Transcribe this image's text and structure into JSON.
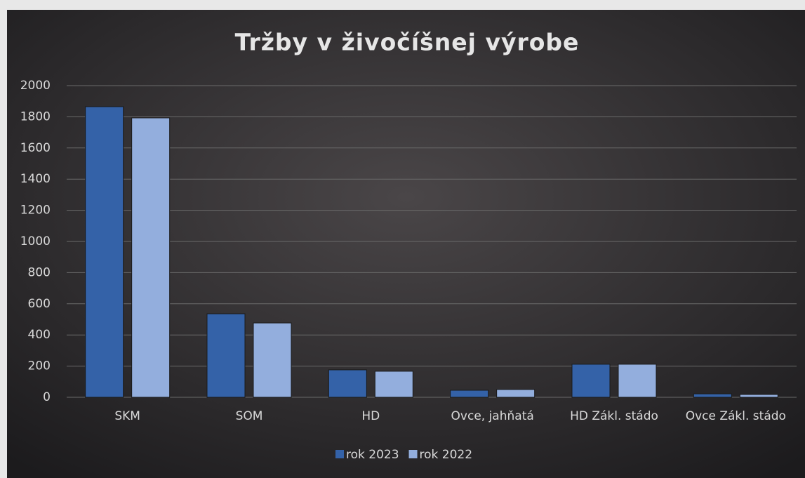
{
  "chart_data": {
    "type": "bar",
    "title": "Tržby v živočíšnej výrobe",
    "categories": [
      "SKM",
      "SOM",
      "HD",
      "Ovce, jahňatá",
      "HD Zákl. stádo",
      "Ovce Zákl. stádo"
    ],
    "series": [
      {
        "name": "rok 2023",
        "color": "#3462a8",
        "values": [
          1865,
          536,
          176,
          45,
          212,
          22
        ]
      },
      {
        "name": "rok 2022",
        "color": "#93aedd",
        "values": [
          1793,
          477,
          167,
          50,
          212,
          18
        ]
      }
    ],
    "ylim": [
      0,
      2000
    ],
    "yticks": [
      0,
      200,
      400,
      600,
      800,
      1000,
      1200,
      1400,
      1600,
      1800,
      2000
    ],
    "grid": true,
    "legend": "bottom"
  }
}
